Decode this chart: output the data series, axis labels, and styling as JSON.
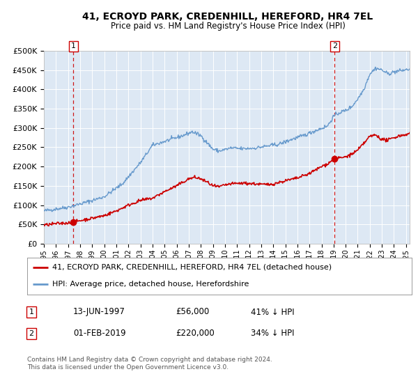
{
  "title": "41, ECROYD PARK, CREDENHILL, HEREFORD, HR4 7EL",
  "subtitle": "Price paid vs. HM Land Registry's House Price Index (HPI)",
  "background_color": "#dde8f4",
  "ylim": [
    0,
    500000
  ],
  "yticks": [
    0,
    50000,
    100000,
    150000,
    200000,
    250000,
    300000,
    350000,
    400000,
    450000,
    500000
  ],
  "ytick_labels": [
    "£0",
    "£50K",
    "£100K",
    "£150K",
    "£200K",
    "£250K",
    "£300K",
    "£350K",
    "£400K",
    "£450K",
    "£500K"
  ],
  "xmin_year": 1995.0,
  "xmax_year": 2025.3,
  "sale1_date": 1997.45,
  "sale1_price": 56000,
  "sale2_date": 2019.08,
  "sale2_price": 220000,
  "red_line_color": "#cc0000",
  "blue_line_color": "#6699cc",
  "dashed_line_color": "#cc0000",
  "marker_color": "#cc0000",
  "legend_line1": "41, ECROYD PARK, CREDENHILL, HEREFORD, HR4 7EL (detached house)",
  "legend_line2": "HPI: Average price, detached house, Herefordshire",
  "annotation1_date": "13-JUN-1997",
  "annotation1_price": "£56,000",
  "annotation1_hpi": "41% ↓ HPI",
  "annotation2_date": "01-FEB-2019",
  "annotation2_price": "£220,000",
  "annotation2_hpi": "34% ↓ HPI",
  "footer": "Contains HM Land Registry data © Crown copyright and database right 2024.\nThis data is licensed under the Open Government Licence v3.0.",
  "xtick_years": [
    1995,
    1996,
    1997,
    1998,
    1999,
    2000,
    2001,
    2002,
    2003,
    2004,
    2005,
    2006,
    2007,
    2008,
    2009,
    2010,
    2011,
    2012,
    2013,
    2014,
    2015,
    2016,
    2017,
    2018,
    2019,
    2020,
    2021,
    2022,
    2023,
    2024,
    2025
  ]
}
